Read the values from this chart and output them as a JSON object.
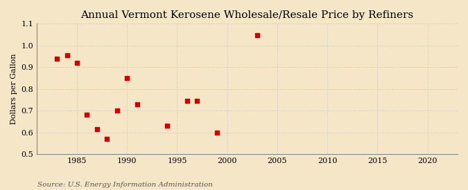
{
  "title": "Annual Vermont Kerosene Wholesale/Resale Price by Refiners",
  "ylabel": "Dollars per Gallon",
  "source": "Source: U.S. Energy Information Administration",
  "background_color": "#f5e6c8",
  "x_data": [
    1983,
    1984,
    1985,
    1986,
    1987,
    1988,
    1989,
    1990,
    1991,
    1994,
    1996,
    1997,
    1999,
    2003
  ],
  "y_data": [
    0.94,
    0.955,
    0.92,
    0.68,
    0.615,
    0.57,
    0.7,
    0.85,
    0.73,
    0.63,
    0.745,
    0.745,
    0.6,
    1.047
  ],
  "marker_color": "#cc0000",
  "marker_size": 18,
  "xlim": [
    1981,
    2023
  ],
  "ylim": [
    0.5,
    1.1
  ],
  "xticks": [
    1985,
    1990,
    1995,
    2000,
    2005,
    2010,
    2015,
    2020
  ],
  "yticks": [
    0.5,
    0.6,
    0.7,
    0.8,
    0.9,
    1.0,
    1.1
  ],
  "grid_color": "#cccccc",
  "title_fontsize": 11,
  "label_fontsize": 8,
  "tick_fontsize": 8,
  "source_fontsize": 7.5
}
